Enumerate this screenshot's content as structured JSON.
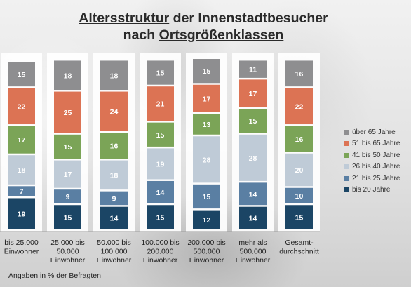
{
  "title": {
    "line1_underlined": "Altersstruktur",
    "line1_rest": " der Innenstadtbesucher",
    "line2_prefix": "nach ",
    "line2_underlined": "Ortsgrößenklassen"
  },
  "footnote": "Angaben in % der Befragten",
  "chart_data": {
    "type": "bar",
    "stacked": true,
    "categories": [
      [
        "bis 25.000",
        "Einwohner"
      ],
      [
        "25.000 bis",
        "50.000",
        "Einwohner"
      ],
      [
        "50.000 bis",
        "100.000",
        "Einwohner"
      ],
      [
        "100.000 bis",
        "200.000",
        "Einwohner"
      ],
      [
        "200.000 bis",
        "500.000",
        "Einwohner"
      ],
      [
        "mehr als",
        "500.000",
        "Einwohner"
      ],
      [
        "Gesamt-",
        "durchschnitt"
      ]
    ],
    "series": [
      {
        "name": "bis 20 Jahre",
        "color": "#1b4565",
        "values": [
          19,
          15,
          14,
          15,
          12,
          14,
          15
        ]
      },
      {
        "name": "21 bis 25 Jahre",
        "color": "#5a7fa3",
        "values": [
          7,
          9,
          9,
          14,
          15,
          14,
          10
        ]
      },
      {
        "name": "26 bis 40 Jahre",
        "color": "#bfcbd7",
        "values": [
          18,
          17,
          18,
          19,
          28,
          28,
          20
        ]
      },
      {
        "name": "41 bis 50 Jahre",
        "color": "#7ba457",
        "values": [
          17,
          15,
          16,
          15,
          13,
          15,
          16
        ]
      },
      {
        "name": "51 bis 65 Jahre",
        "color": "#dc7354",
        "values": [
          22,
          25,
          24,
          21,
          17,
          17,
          22
        ]
      },
      {
        "name": "über 65 Jahre",
        "color": "#8e8e90",
        "values": [
          15,
          18,
          18,
          15,
          15,
          11,
          16
        ]
      }
    ],
    "legend_order": [
      "über 65 Jahre",
      "51 bis 65 Jahre",
      "41 bis 50 Jahre",
      "26 bis 40 Jahre",
      "21 bis 25 Jahre",
      "bis 20 Jahre"
    ],
    "legend_position": "right",
    "grid": false
  }
}
